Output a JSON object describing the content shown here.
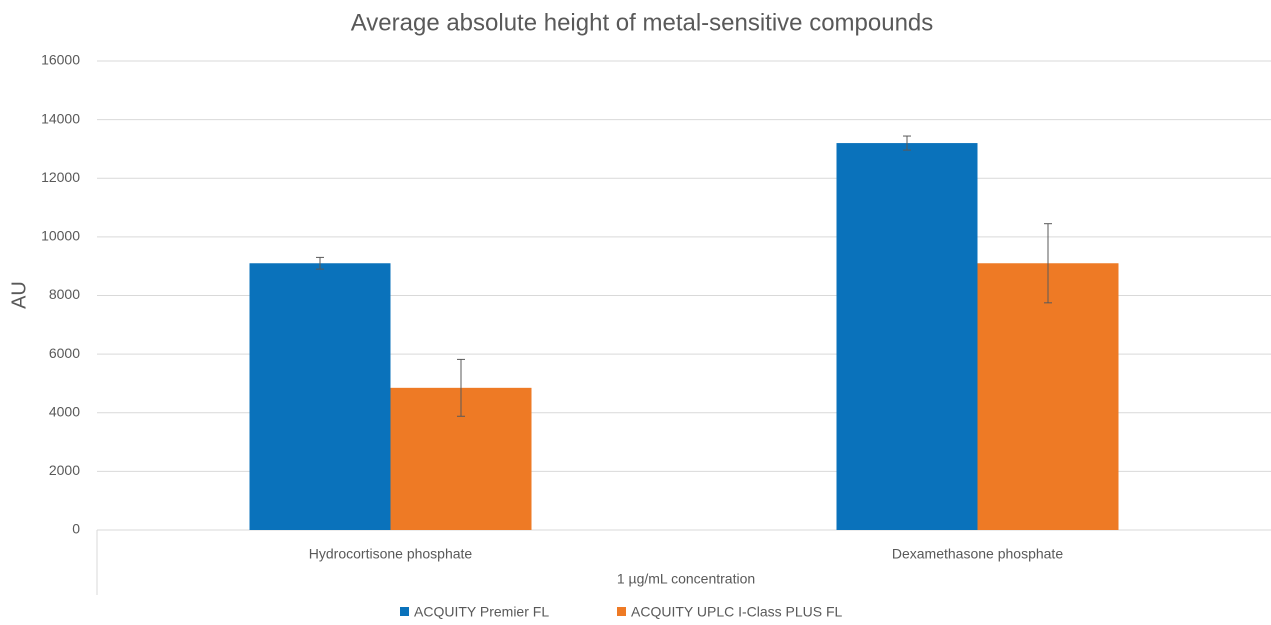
{
  "chart_data": {
    "type": "bar",
    "title": "Average absolute height of metal-sensitive compounds",
    "x_label": "1 µg/mL concentration",
    "y_label": "AU",
    "categories": [
      "Hydrocortisone phosphate",
      "Dexamethasone phosphate"
    ],
    "series": [
      {
        "name": "ACQUITY Premier FL",
        "color": "#0a72bb",
        "values": [
          9100,
          13200
        ],
        "errors": [
          200,
          240
        ]
      },
      {
        "name": "ACQUITY UPLC I-Class PLUS FL",
        "color": "#ee7a25",
        "values": [
          4850,
          9100
        ],
        "errors": [
          970,
          1350
        ]
      }
    ],
    "ylim": [
      0,
      16000
    ],
    "yticks": [
      0,
      2000,
      4000,
      6000,
      8000,
      10000,
      12000,
      14000,
      16000
    ],
    "grid": true,
    "legend": "bottom"
  }
}
